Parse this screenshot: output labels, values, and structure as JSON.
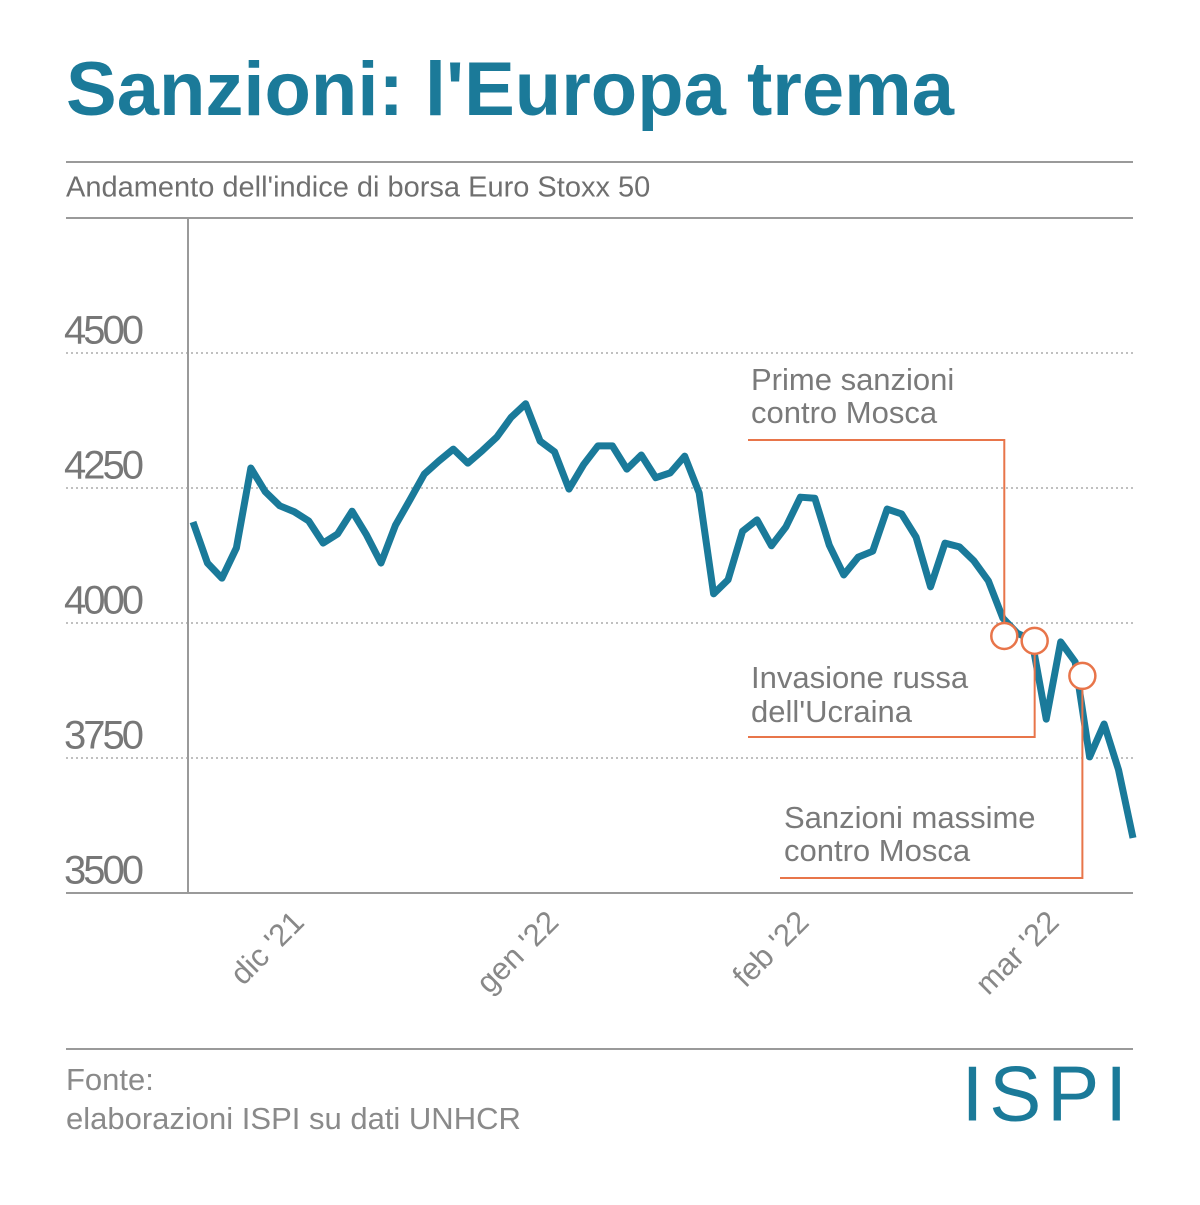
{
  "chart_data": {
    "type": "line",
    "title": "Sanzioni: l'Europa trema",
    "subtitle": "Andamento dell'indice di borsa Euro Stoxx 50",
    "x": [
      0,
      1,
      2,
      3,
      4,
      5,
      6,
      7,
      8,
      9,
      10,
      11,
      12,
      13,
      14,
      15,
      16,
      17,
      18,
      19,
      20,
      21,
      22,
      23,
      24,
      25,
      26,
      27,
      28,
      29,
      30,
      31,
      32,
      33,
      34,
      35,
      36,
      37,
      38,
      39,
      40,
      41,
      42,
      43,
      44,
      45,
      46,
      47,
      48,
      49,
      50,
      51,
      52,
      53,
      54,
      55,
      56,
      57,
      58,
      59,
      60,
      61,
      62,
      63,
      64,
      65
    ],
    "series": [
      {
        "color": "#1a7a9a",
        "values": [
          4187,
          4111,
          4083,
          4139,
          4287,
          4243,
          4217,
          4206,
          4189,
          4148,
          4165,
          4207,
          4163,
          4111,
          4181,
          4228,
          4276,
          4300,
          4322,
          4296,
          4319,
          4344,
          4381,
          4406,
          4337,
          4317,
          4248,
          4293,
          4328,
          4328,
          4285,
          4311,
          4269,
          4278,
          4309,
          4241,
          4054,
          4080,
          4170,
          4191,
          4143,
          4178,
          4233,
          4231,
          4144,
          4089,
          4122,
          4133,
          4211,
          4202,
          4159,
          4067,
          4148,
          4141,
          4115,
          4078,
          4009,
          3981,
          3969,
          3822,
          3965,
          3928,
          3752,
          3813,
          3728,
          3602
        ]
      }
    ],
    "xlim": [
      0,
      65
    ],
    "xticks": [
      {
        "value": 7.4,
        "label": "dic '21"
      },
      {
        "value": 25,
        "label": "gen '22"
      },
      {
        "value": 42.3,
        "label": "feb '22"
      },
      {
        "value": 59.6,
        "label": "mar '22"
      }
    ],
    "ylim": [
      3500,
      4750
    ],
    "yticks": [
      3500,
      3750,
      4000,
      4250,
      4500
    ],
    "grid": true,
    "annotations": [
      {
        "text": [
          "Prime sanzioni",
          "contro Mosca"
        ],
        "x": 56.1,
        "y": 3976
      },
      {
        "text": [
          "Invasione russa",
          "dell'Ucraina"
        ],
        "x": 58.2,
        "y": 3967
      },
      {
        "text": [
          "Sanzioni massime",
          "contro Mosca"
        ],
        "x": 61.5,
        "y": 3902
      }
    ],
    "annotation_color": "#e8754a"
  },
  "footer": {
    "source": [
      "Fonte:",
      "elaborazioni ISPI su dati UNHCR"
    ],
    "logo": "ISPI"
  }
}
